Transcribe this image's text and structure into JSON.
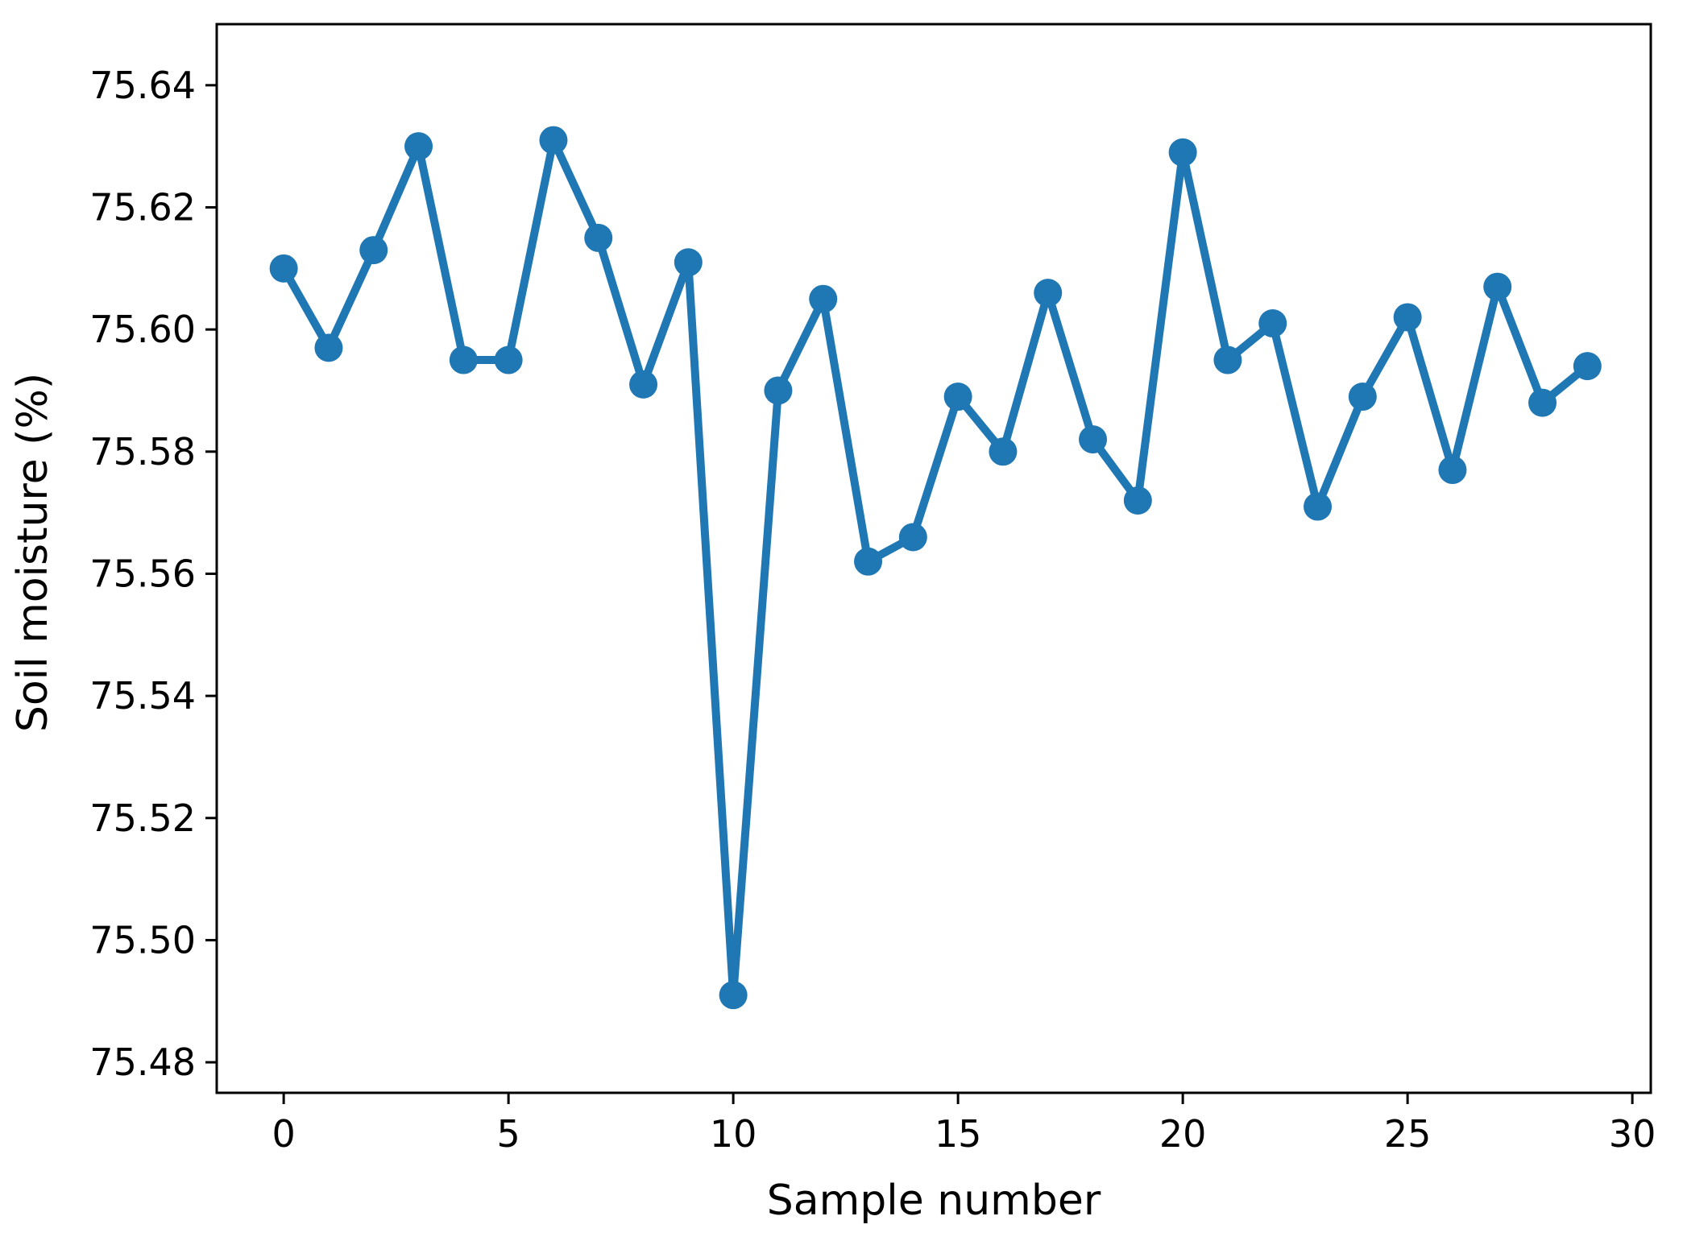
{
  "figure": {
    "background": "#ffffff",
    "spine_color": "#000000",
    "text_color": "#000000"
  },
  "chart_data": {
    "type": "line",
    "title": "",
    "xlabel": "Sample number",
    "ylabel": "Soil moisture (%)",
    "series": [
      {
        "name": "soil-moisture",
        "color": "#1f77b4",
        "marker": "circle",
        "x": [
          0,
          1,
          2,
          3,
          4,
          5,
          6,
          7,
          8,
          9,
          10,
          11,
          12,
          13,
          14,
          15,
          16,
          17,
          18,
          19,
          20,
          21,
          22,
          23,
          24,
          25,
          26,
          27,
          28,
          29
        ],
        "y": [
          75.61,
          75.597,
          75.613,
          75.63,
          75.595,
          75.595,
          75.631,
          75.615,
          75.591,
          75.611,
          75.491,
          75.59,
          75.605,
          75.562,
          75.566,
          75.589,
          75.58,
          75.606,
          75.582,
          75.572,
          75.629,
          75.595,
          75.601,
          75.571,
          75.589,
          75.602,
          75.577,
          75.607,
          75.588,
          75.594
        ]
      }
    ],
    "x_ticks": [
      {
        "v": 0,
        "label": "0"
      },
      {
        "v": 5,
        "label": "5"
      },
      {
        "v": 10,
        "label": "10"
      },
      {
        "v": 15,
        "label": "15"
      },
      {
        "v": 20,
        "label": "20"
      },
      {
        "v": 25,
        "label": "25"
      },
      {
        "v": 30,
        "label": "30"
      }
    ],
    "y_ticks": [
      {
        "v": 75.48,
        "label": "75.48"
      },
      {
        "v": 75.5,
        "label": "75.50"
      },
      {
        "v": 75.52,
        "label": "75.52"
      },
      {
        "v": 75.54,
        "label": "75.54"
      },
      {
        "v": 75.56,
        "label": "75.56"
      },
      {
        "v": 75.58,
        "label": "75.58"
      },
      {
        "v": 75.6,
        "label": "75.60"
      },
      {
        "v": 75.62,
        "label": "75.62"
      },
      {
        "v": 75.64,
        "label": "75.64"
      }
    ],
    "xlim": [
      -1.49,
      30.41
    ],
    "ylim": [
      75.475,
      75.65
    ],
    "grid": false,
    "legend": "none"
  }
}
